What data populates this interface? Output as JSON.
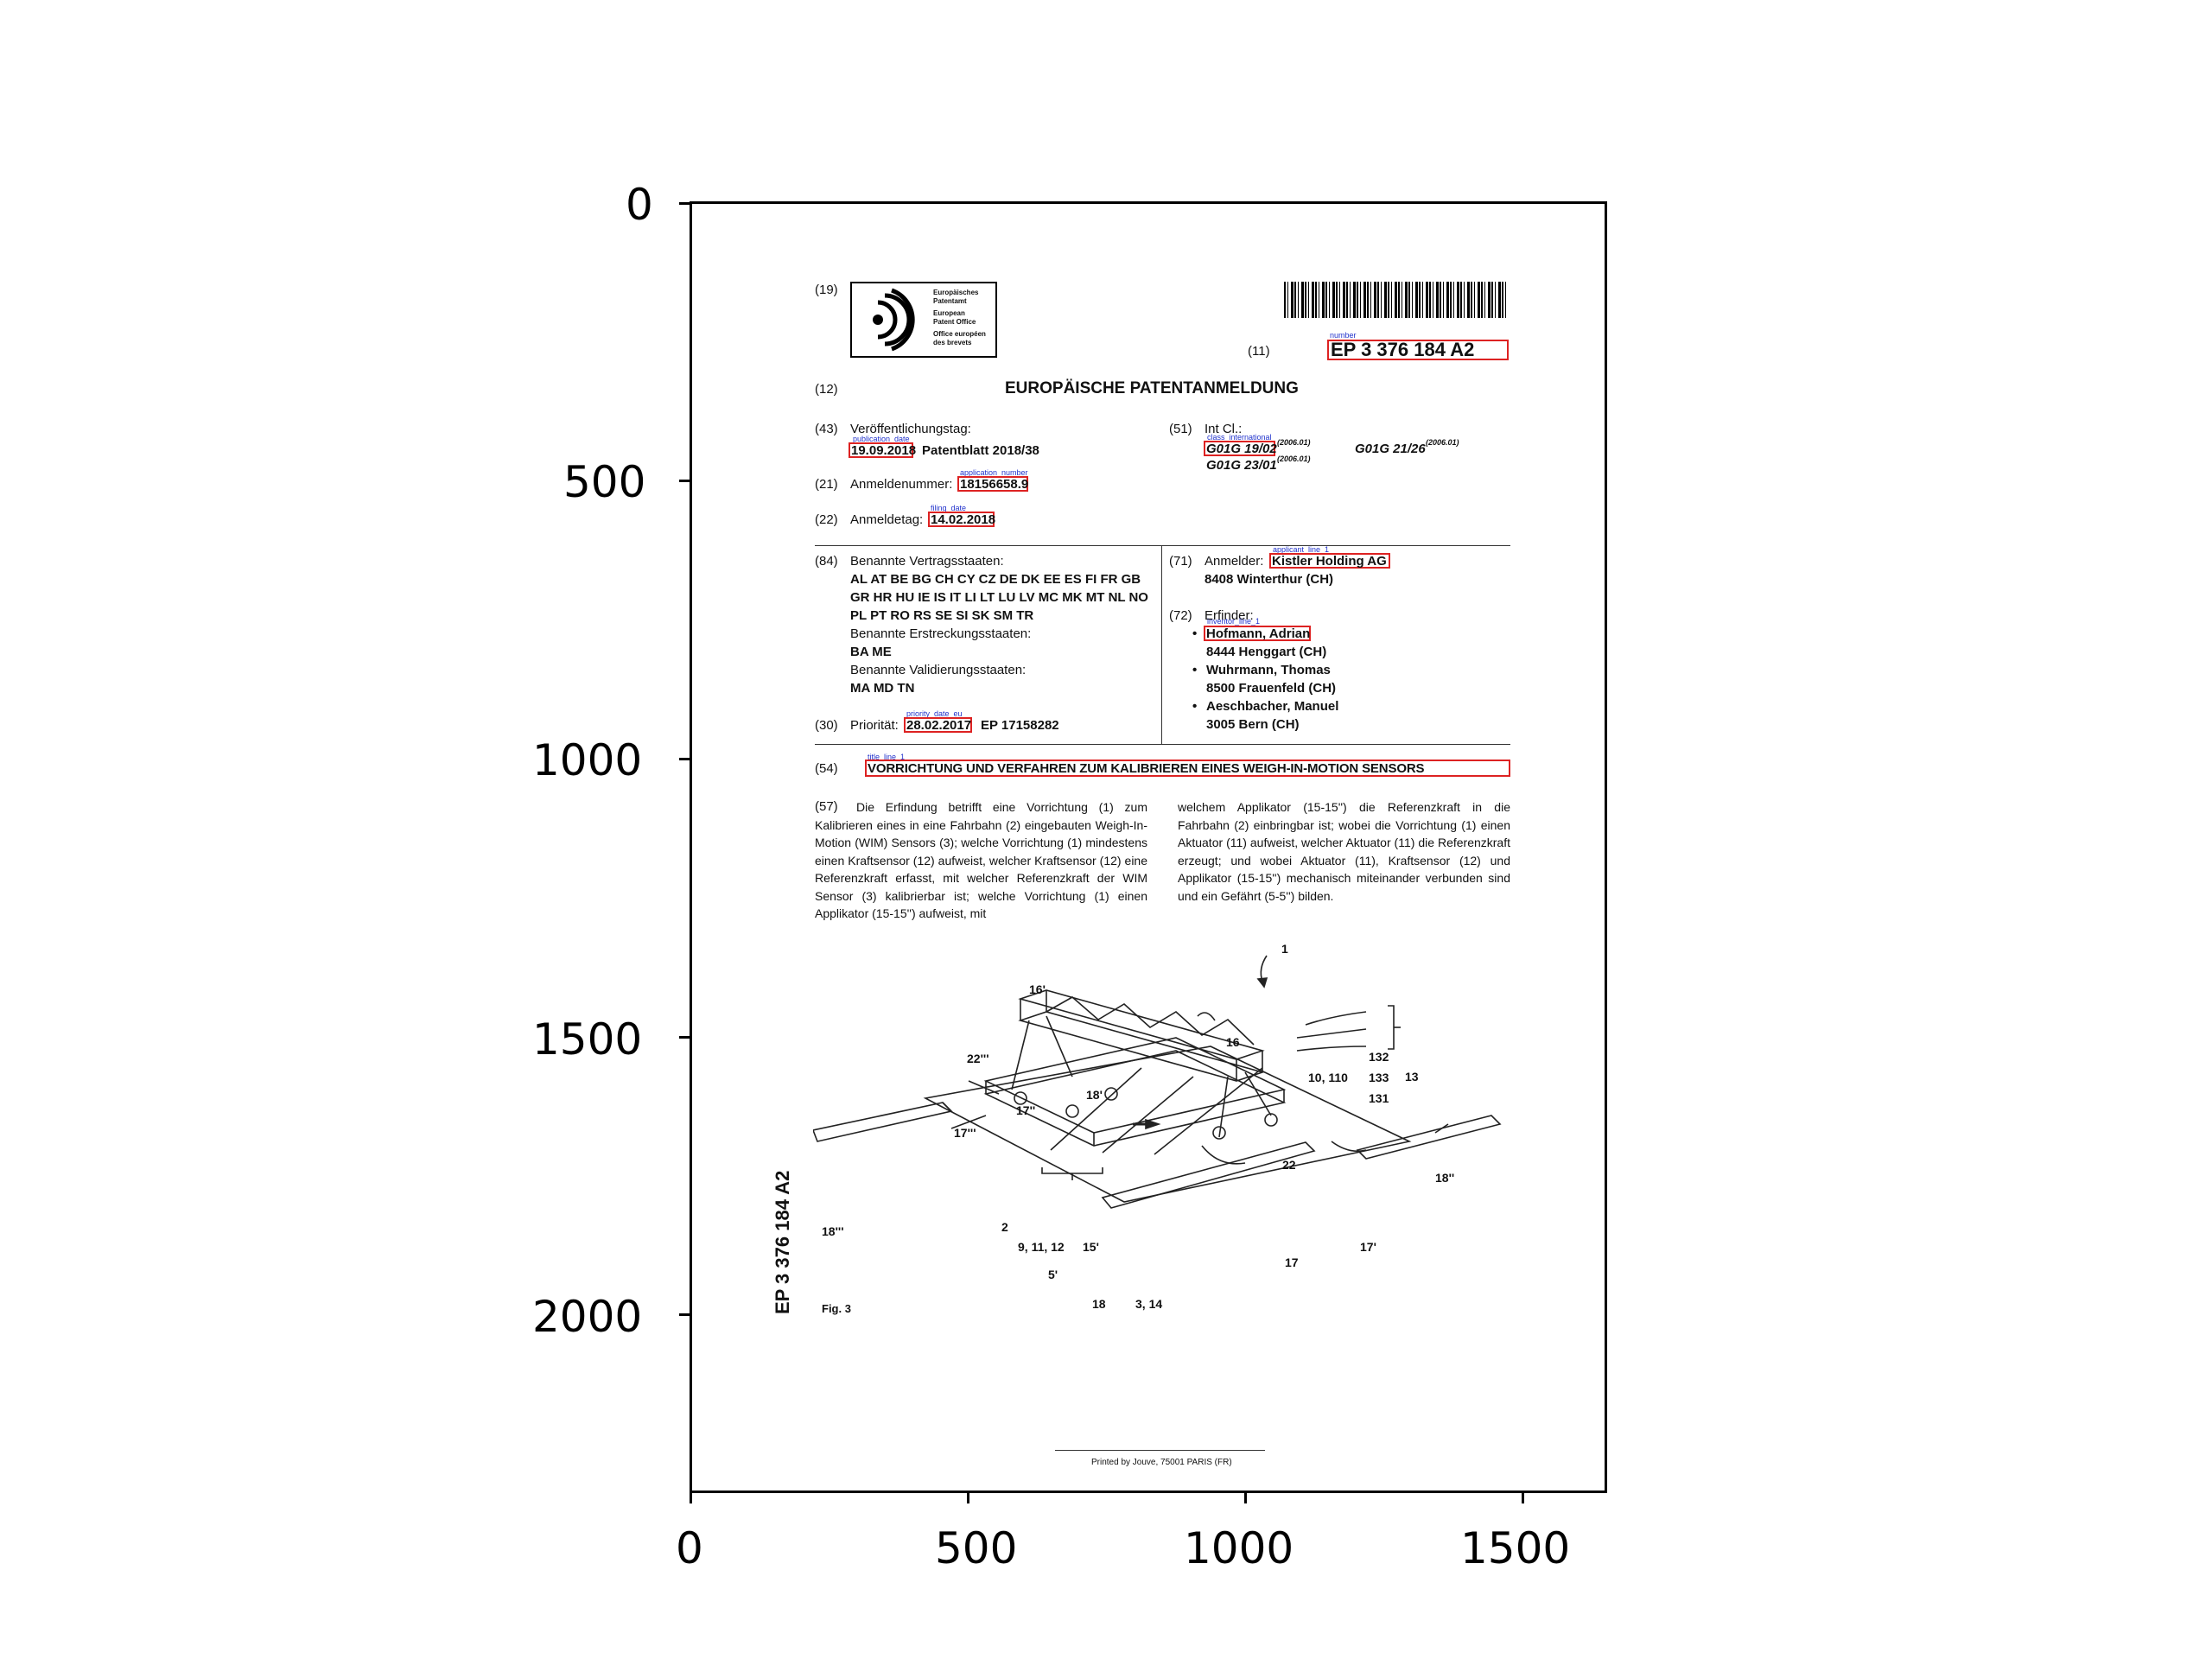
{
  "axes": {
    "y_ticks": [
      "0",
      "500",
      "1000",
      "1500",
      "2000"
    ],
    "x_ticks": [
      "0",
      "500",
      "1000",
      "1500"
    ]
  },
  "header": {
    "code_19": "(19)",
    "logo_lines": [
      "Europäisches",
      "Patentamt",
      "European",
      "Patent Office",
      "Office européen",
      "des brevets"
    ],
    "code_11": "(11)",
    "number_tag": "number",
    "number": "EP 3 376 184 A2",
    "code_12": "(12)",
    "doc_type": "EUROPÄISCHE PATENTANMELDUNG"
  },
  "biblio": {
    "code_43": "(43)",
    "pub_label": "Veröffentlichungstag:",
    "pub_tag": "publication_date",
    "pub_date": "19.09.2018",
    "patentblatt": "Patentblatt 2018/38",
    "code_51": "(51)",
    "intcl_label": "Int Cl.:",
    "class_tag": "class_international",
    "class1": "G01G 19/02",
    "class1_ver": "(2006.01)",
    "class2": "G01G 21/26",
    "class2_ver": "(2006.01)",
    "class3": "G01G 23/01",
    "class3_ver": "(2006.01)",
    "code_21": "(21)",
    "appnum_label": "Anmeldenummer:",
    "appnum_tag": "application_number",
    "appnum": "18156658.9",
    "code_22": "(22)",
    "filing_label": "Anmeldetag:",
    "filing_tag": "filing_date",
    "filing_date": "14.02.2018",
    "code_84": "(84)",
    "states_label": "Benannte Vertragsstaaten:",
    "states_line1": "AL AT BE BG CH CY CZ DE DK EE ES FI FR GB",
    "states_line2": "GR HR HU IE IS IT LI LT LU LV MC MK MT NL NO",
    "states_line3": "PL PT RO RS SE SI SK SM TR",
    "ext_label": "Benannte Erstreckungsstaaten:",
    "ext_states": "BA ME",
    "valid_label": "Benannte Validierungsstaaten:",
    "valid_states": "MA MD TN",
    "code_30": "(30)",
    "priority_label": "Priorität:",
    "priority_tag": "priority_date_eu",
    "priority_date": "28.02.2017",
    "priority_num": "EP 17158282",
    "code_71": "(71)",
    "applicant_label": "Anmelder:",
    "applicant_tag": "applicant_line_1",
    "applicant": "Kistler Holding AG",
    "applicant_city": "8408 Winterthur (CH)",
    "code_72": "(72)",
    "inventor_label": "Erfinder:",
    "inventor_tag": "inventor_line_1",
    "inventors": [
      {
        "name": "Hofmann, Adrian",
        "city": "8444 Henggart (CH)"
      },
      {
        "name": "Wuhrmann, Thomas",
        "city": "8500 Frauenfeld (CH)"
      },
      {
        "name": "Aeschbacher, Manuel",
        "city": "3005 Bern (CH)"
      }
    ],
    "bullet": "•"
  },
  "title_block": {
    "code_54": "(54)",
    "title_tag": "title_line_1",
    "title": "VORRICHTUNG UND VERFAHREN ZUM KALIBRIEREN EINES WEIGH-IN-MOTION SENSORS"
  },
  "abstract": {
    "code_57": "(57)",
    "left_text": "Die Erfindung betrifft eine Vorrichtung (1) zum Kalibrieren eines in eine Fahrbahn (2) eingebauten Weigh-In-Motion (WIM) Sensors (3); welche Vorrichtung (1) mindestens einen Kraftsensor (12) aufweist, welcher Kraftsensor (12) eine Referenzkraft erfasst, mit welcher Referenzkraft der WIM Sensor (3) kalibrierbar ist; welche Vorrichtung (1) einen Applikator (15-15'') aufweist, mit",
    "right_text": "welchem Applikator (15-15'') die Referenzkraft in die Fahrbahn (2) einbringbar ist; wobei die Vorrichtung (1) einen Aktuator (11) aufweist, welcher Aktuator (11) die Referenzkraft erzeugt; und wobei Aktuator (11), Kraftsensor (12) und Applikator (15-15'') mechanisch miteinander verbunden sind und ein Gefährt (5-5'') bilden."
  },
  "figure": {
    "labels": {
      "l1": "1",
      "l16p": "16'",
      "l16": "16",
      "l22ppp": "22'''",
      "l132": "132",
      "l13": "13",
      "l10": "10, 110",
      "l133": "133",
      "l131": "131",
      "l17pp": "17''",
      "l18p": "18'",
      "l17ppp": "17'''",
      "l22": "22",
      "l18pp": "18''",
      "l18ppp": "18'''",
      "l2": "2",
      "l9": "9, 11, 12",
      "l15p": "15'",
      "l5p": "5'",
      "l18": "18",
      "l3": "3, 14",
      "l17": "17",
      "l17p": "17'"
    },
    "caption": "Fig. 3"
  },
  "footer": {
    "side_number": "EP 3 376 184 A2",
    "printer": "Printed by Jouve, 75001 PARIS (FR)"
  }
}
